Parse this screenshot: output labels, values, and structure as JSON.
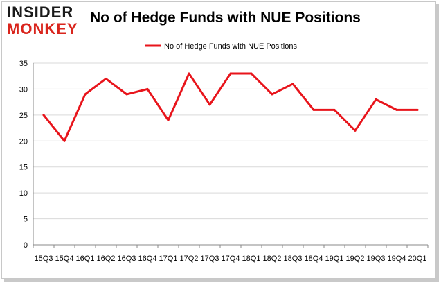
{
  "header": {
    "logo_line1": "INSIDER",
    "logo_line2": "MONKEY",
    "title": "No of Hedge Funds with NUE Positions"
  },
  "colors": {
    "line": "#e8141b",
    "grid": "#d9d9d9",
    "axis": "#888888"
  },
  "chart_data": {
    "type": "line",
    "title": "No of Hedge Funds with NUE Positions",
    "xlabel": "",
    "ylabel": "",
    "ylim": [
      0,
      35
    ],
    "yticks": [
      0,
      5,
      10,
      15,
      20,
      25,
      30,
      35
    ],
    "grid": true,
    "legend_position": "top-center",
    "categories": [
      "15Q3",
      "15Q4",
      "16Q1",
      "16Q2",
      "16Q3",
      "16Q4",
      "17Q1",
      "17Q2",
      "17Q3",
      "17Q4",
      "18Q1",
      "18Q2",
      "18Q3",
      "18Q4",
      "19Q1",
      "19Q2",
      "19Q3",
      "19Q4",
      "20Q1"
    ],
    "series": [
      {
        "name": "No of Hedge Funds with NUE  Positions",
        "values": [
          25,
          20,
          29,
          32,
          29,
          30,
          24,
          33,
          27,
          33,
          33,
          29,
          31,
          26,
          26,
          22,
          28,
          26,
          26
        ]
      }
    ]
  }
}
